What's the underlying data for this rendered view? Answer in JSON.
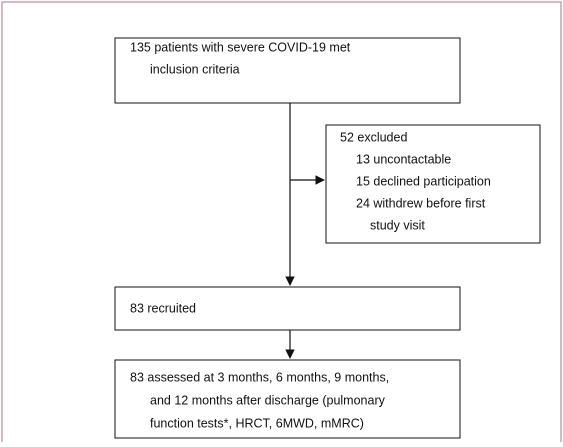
{
  "nodes": [
    {
      "lines": [
        "135 patients with severe COVID-19 met",
        "inclusion criteria"
      ]
    },
    {
      "lines": [
        "52 excluded",
        "13 uncontactable",
        "15 declined participation",
        "24 withdrew before first",
        "study visit"
      ]
    },
    {
      "lines": [
        "83 recruited"
      ]
    },
    {
      "lines": [
        "83 assessed at 3 months, 6 months, 9 months,",
        "and 12 months after discharge (pulmonary",
        "function tests*, HRCT, 6MWD, mMRC)"
      ]
    }
  ]
}
